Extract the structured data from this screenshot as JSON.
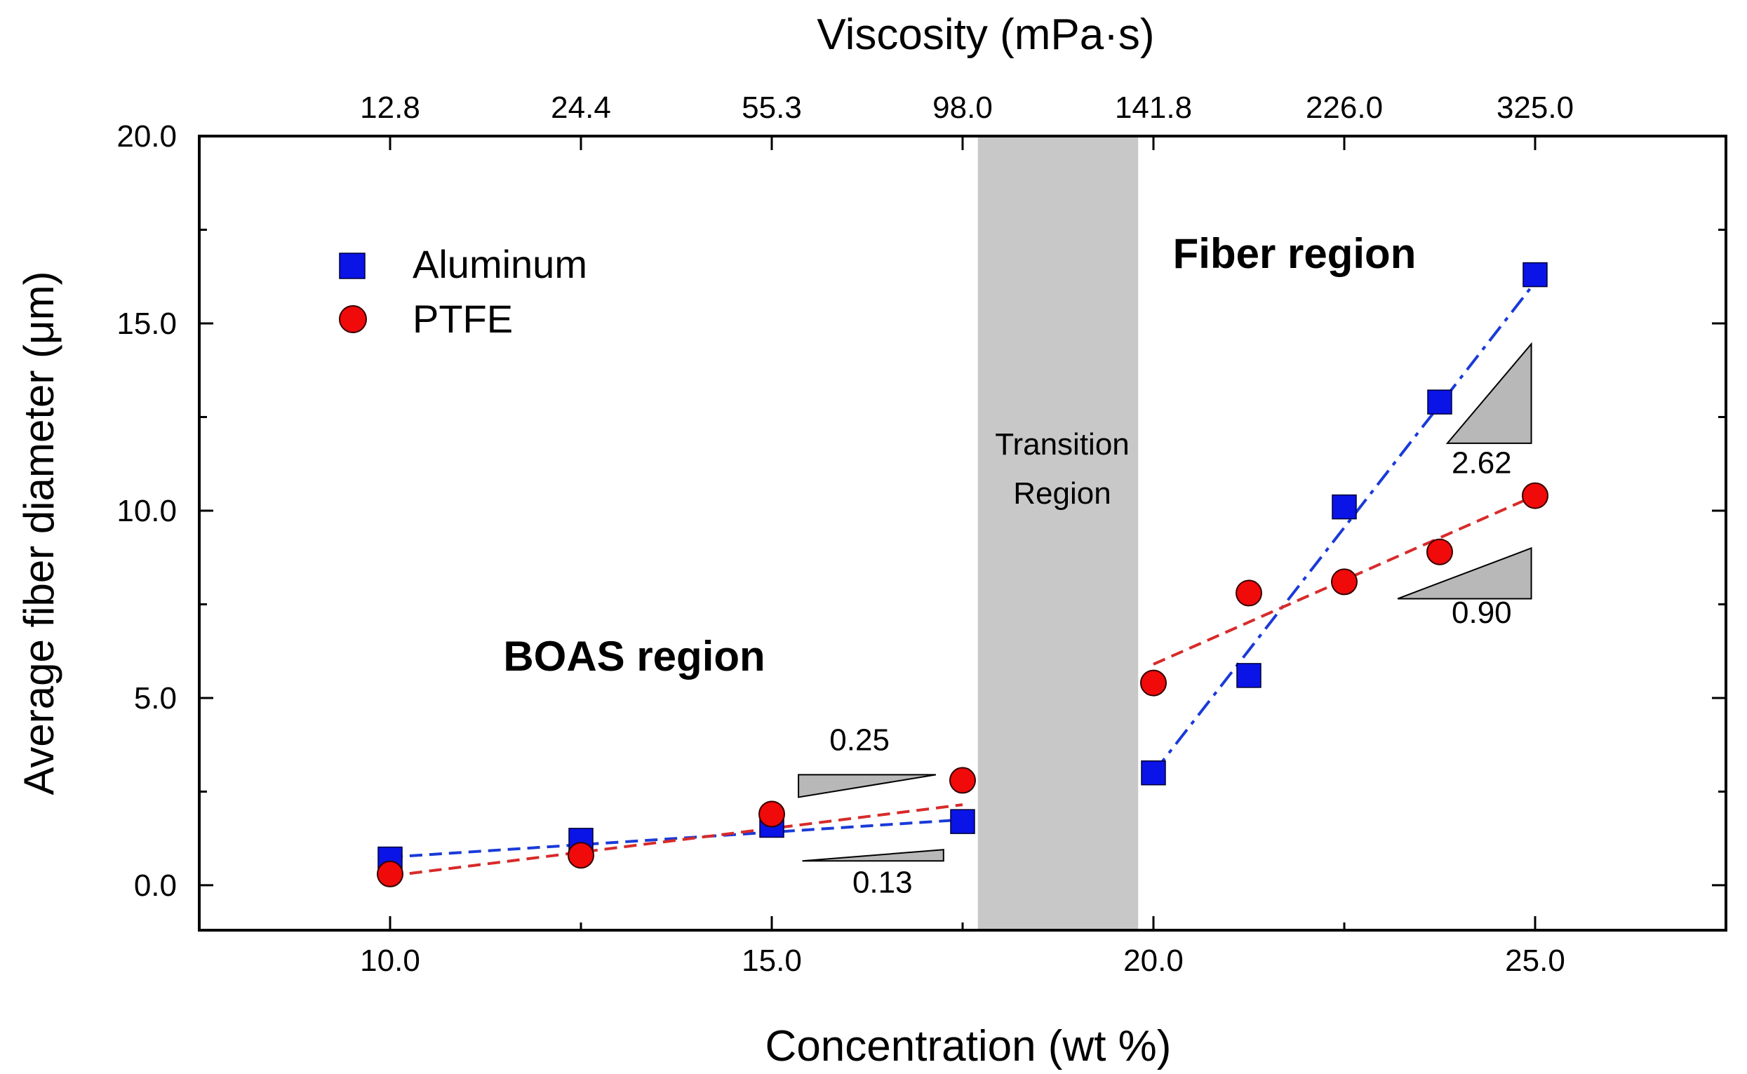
{
  "chart_data": {
    "type": "scatter",
    "title": "",
    "xlabel": "Concentration (wt %)",
    "ylabel": "Average fiber diameter (μm)",
    "top_xlabel": "Viscosity (mPa·s)",
    "xlim": [
      7.5,
      27.5
    ],
    "ylim": [
      -1.2,
      20.0
    ],
    "x_ticks": [
      10,
      15,
      20,
      25
    ],
    "x_tick_labels": [
      "10.0",
      "15.0",
      "20.0",
      "25.0"
    ],
    "y_ticks": [
      0,
      5,
      10,
      15,
      20
    ],
    "y_tick_labels": [
      "0.0",
      "5.0",
      "10.0",
      "15.0",
      "20.0"
    ],
    "top_ticks": [
      10,
      12.5,
      15,
      17.5,
      20,
      22.5,
      25
    ],
    "top_tick_labels": [
      "12.8",
      "24.4",
      "55.3",
      "98.0",
      "141.8",
      "226.0",
      "325.0"
    ],
    "series": [
      {
        "name": "Aluminum",
        "marker": "square",
        "color": "#0a14e6",
        "line_color": "#1a3ad8",
        "x": [
          10,
          12.5,
          15,
          17.5,
          20,
          21.25,
          22.5,
          23.75,
          25
        ],
        "y": [
          0.7,
          1.2,
          1.6,
          1.7,
          3.0,
          5.6,
          10.1,
          12.9,
          16.3
        ],
        "fits": [
          {
            "x": [
              10,
              17.5
            ],
            "y": [
              0.75,
              1.75
            ],
            "slope_label": "0.13"
          },
          {
            "x": [
              20,
              25
            ],
            "y": [
              3.0,
              16.1
            ],
            "slope_label": "2.62"
          }
        ]
      },
      {
        "name": "PTFE",
        "marker": "circle",
        "color": "#f00a0a",
        "line_color": "#d82a2a",
        "x": [
          10,
          12.5,
          15,
          17.5,
          20,
          21.25,
          22.5,
          23.75,
          25
        ],
        "y": [
          0.3,
          0.8,
          1.9,
          2.8,
          5.4,
          7.8,
          8.1,
          8.9,
          10.4
        ],
        "fits": [
          {
            "x": [
              10,
              17.5
            ],
            "y": [
              0.25,
              2.15
            ],
            "slope_label": "0.25"
          },
          {
            "x": [
              20,
              25
            ],
            "y": [
              5.9,
              10.4
            ],
            "slope_label": "0.90"
          }
        ]
      }
    ],
    "regions": [
      {
        "label_lines": [
          "Transition",
          "Region"
        ],
        "x": [
          17.7,
          19.8
        ],
        "color": "#c8c8c8"
      }
    ],
    "annotations": [
      {
        "text": "BOAS region",
        "x": 14.2,
        "y": 6.1
      },
      {
        "text": "Fiber region",
        "x": 21.8,
        "y": 16.7
      }
    ],
    "slope_triangles": [
      {
        "label": "0.25",
        "vertices": [
          [
            15.35,
            2.35
          ],
          [
            17.15,
            2.95
          ],
          [
            15.35,
            2.95
          ]
        ],
        "orientation": "down",
        "label_x": 16.15,
        "label_y": 3.6
      },
      {
        "label": "0.13",
        "vertices": [
          [
            15.4,
            0.65
          ],
          [
            17.25,
            0.95
          ],
          [
            17.25,
            0.65
          ]
        ],
        "orientation": "up",
        "label_x": 16.45,
        "label_y": -0.2
      },
      {
        "label": "2.62",
        "vertices": [
          [
            23.85,
            11.8
          ],
          [
            24.95,
            14.45
          ],
          [
            24.95,
            11.8
          ]
        ],
        "orientation": "up",
        "label_x": 24.3,
        "label_y": 11.0
      },
      {
        "label": "0.90",
        "vertices": [
          [
            23.2,
            7.65
          ],
          [
            24.95,
            9.0
          ],
          [
            24.95,
            7.65
          ]
        ],
        "orientation": "up",
        "label_x": 24.3,
        "label_y": 7.0
      }
    ],
    "legend": {
      "position": "top-left"
    }
  }
}
